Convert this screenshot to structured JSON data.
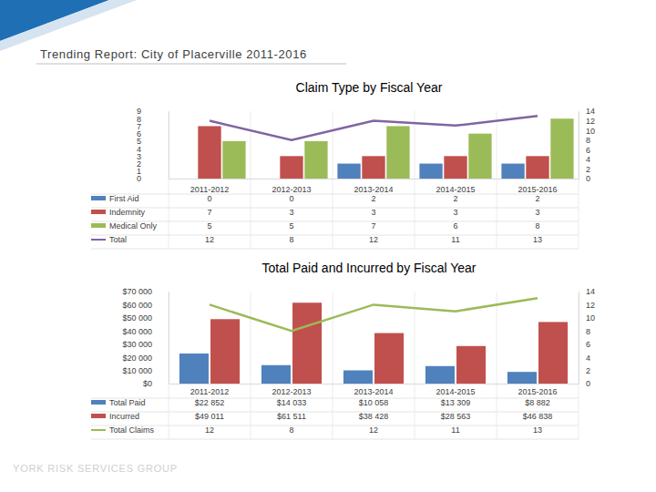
{
  "header": {
    "title": "Trending Report: City of Placerville 2011-2016"
  },
  "footer": {
    "text": "YORK RISK SERVICES GROUP"
  },
  "chart_data": [
    {
      "type": "bar",
      "title": "Claim Type by Fiscal Year",
      "categories": [
        "2011-2012",
        "2012-2013",
        "2013-2014",
        "2014-2015",
        "2015-2016"
      ],
      "series": [
        {
          "name": "First Aid",
          "type": "bar",
          "color": "#4f81bd",
          "values": [
            0,
            0,
            2,
            2,
            2
          ]
        },
        {
          "name": "Indemnity",
          "type": "bar",
          "color": "#c0504d",
          "values": [
            7,
            3,
            3,
            3,
            3
          ]
        },
        {
          "name": "Medical Only",
          "type": "bar",
          "color": "#9bbb59",
          "values": [
            5,
            5,
            7,
            6,
            8
          ]
        },
        {
          "name": "Total",
          "type": "line",
          "axis": "y2",
          "color": "#8064a2",
          "values": [
            12,
            8,
            12,
            11,
            13
          ]
        }
      ],
      "ylim": [
        0,
        9
      ],
      "yticks": [
        0,
        1,
        2,
        3,
        4,
        5,
        6,
        7,
        8,
        9
      ],
      "y2lim": [
        0,
        14
      ],
      "y2ticks": [
        0,
        2,
        4,
        6,
        8,
        10,
        12,
        14
      ],
      "grid": false
    },
    {
      "type": "bar",
      "title": "Total Paid and Incurred by Fiscal Year",
      "categories": [
        "2011-2012",
        "2012-2013",
        "2013-2014",
        "2014-2015",
        "2015-2016"
      ],
      "series": [
        {
          "name": "Total Paid",
          "type": "bar",
          "color": "#4f81bd",
          "values": [
            22852,
            14033,
            10058,
            13309,
            8882
          ],
          "value_labels": [
            "$22 852",
            "$14 033",
            "$10 058",
            "$13 309",
            "$8 882"
          ]
        },
        {
          "name": "Incurred",
          "type": "bar",
          "color": "#c0504d",
          "values": [
            49011,
            61511,
            38428,
            28563,
            46838
          ],
          "value_labels": [
            "$49 011",
            "$61 511",
            "$38 428",
            "$28 563",
            "$46 838"
          ]
        },
        {
          "name": "Total Claims",
          "type": "line",
          "axis": "y2",
          "color": "#9bbb59",
          "values": [
            12,
            8,
            12,
            11,
            13
          ]
        }
      ],
      "ylim": [
        0,
        70000
      ],
      "yticks": [
        {
          "value": 0,
          "label": "$0"
        },
        {
          "value": 10000,
          "label": "$10 000"
        },
        {
          "value": 20000,
          "label": "$20 000"
        },
        {
          "value": 30000,
          "label": "$30 000"
        },
        {
          "value": 40000,
          "label": "$40 000"
        },
        {
          "value": 50000,
          "label": "$50 000"
        },
        {
          "value": 60000,
          "label": "$60 000"
        },
        {
          "value": 70000,
          "label": "$70 000"
        }
      ],
      "y2lim": [
        0,
        14
      ],
      "y2ticks": [
        0,
        2,
        4,
        6,
        8,
        10,
        12,
        14
      ],
      "grid": false
    }
  ]
}
